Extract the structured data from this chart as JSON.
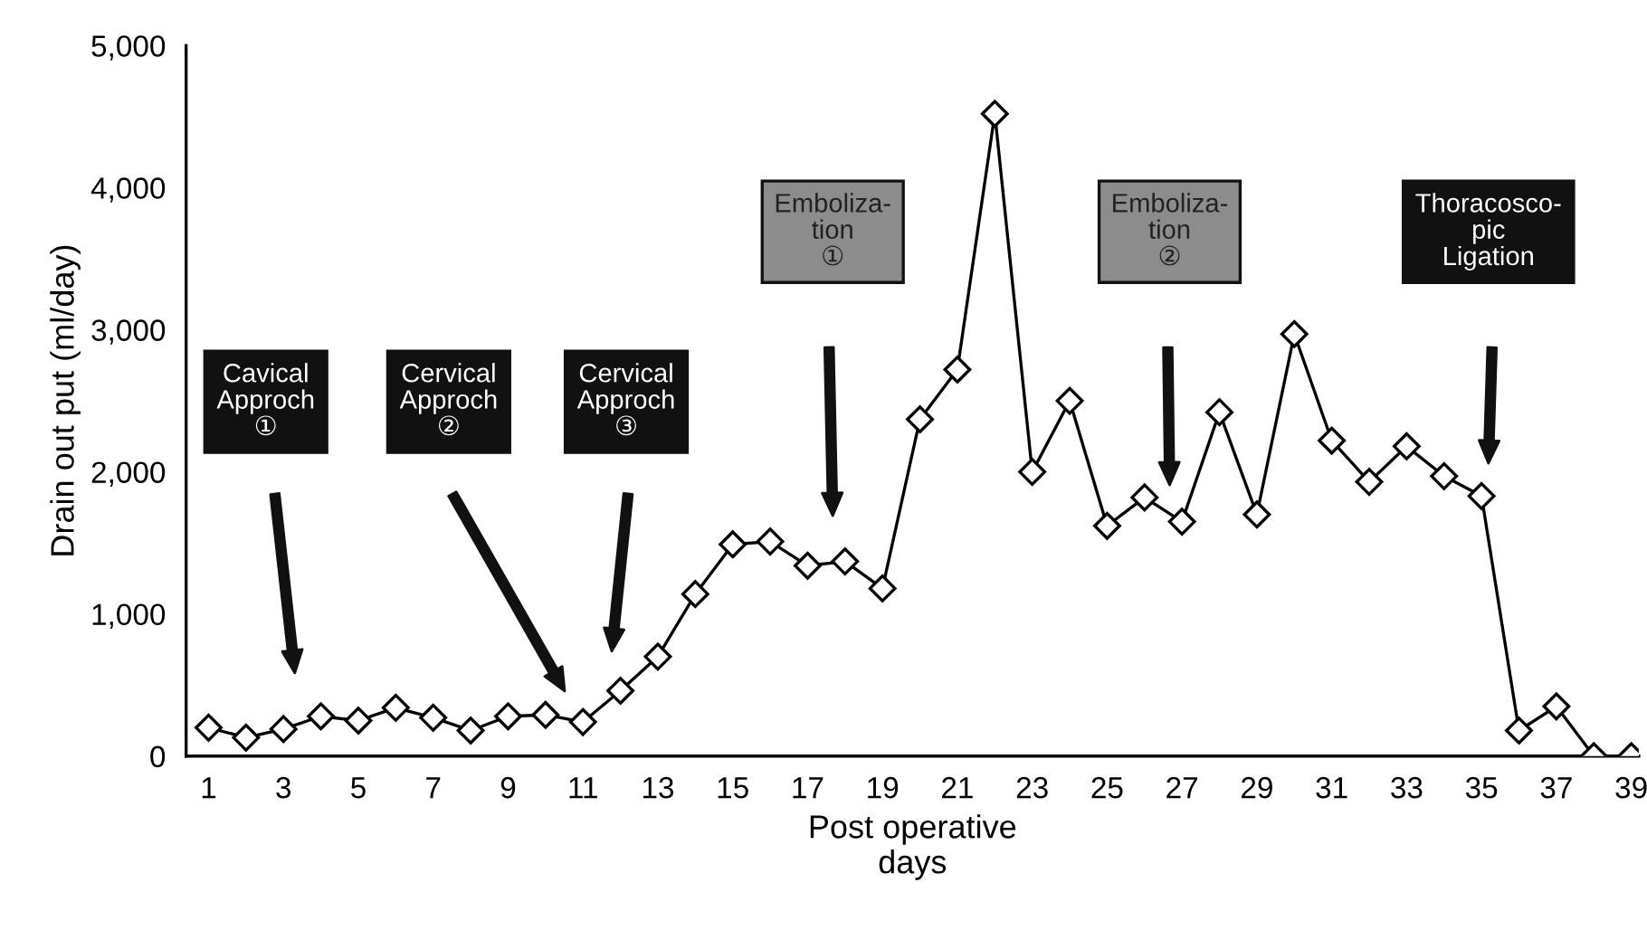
{
  "chart_data": {
    "type": "line",
    "xlabel": "Post operative\ndays",
    "ylabel": "Drain out put (ml/day)",
    "x": [
      1,
      2,
      3,
      4,
      5,
      6,
      7,
      8,
      9,
      10,
      11,
      12,
      13,
      14,
      15,
      16,
      17,
      18,
      19,
      20,
      21,
      22,
      23,
      24,
      25,
      26,
      27,
      28,
      29,
      30,
      31,
      32,
      33,
      34,
      35,
      36,
      37,
      38,
      39
    ],
    "series": [
      {
        "color": "#000000",
        "values": [
          200,
          130,
          190,
          280,
          250,
          340,
          270,
          180,
          280,
          290,
          240,
          460,
          700,
          1140,
          1490,
          1510,
          1340,
          1370,
          1180,
          2370,
          2720,
          4520,
          2000,
          2500,
          1620,
          1820,
          1650,
          2420,
          1700,
          2970,
          2220,
          1930,
          2180,
          1970,
          1830,
          180,
          350,
          0,
          0
        ]
      }
    ],
    "marker": "diamond",
    "line_style": "solid",
    "grid": false,
    "xlim": [
      0.4,
      39.2
    ],
    "xticks": [
      1,
      3,
      5,
      7,
      9,
      11,
      13,
      15,
      17,
      19,
      21,
      23,
      25,
      27,
      29,
      31,
      33,
      35,
      37,
      39
    ],
    "ylim": [
      0,
      5000
    ],
    "yticks": [
      0,
      {
        "value": 1000,
        "label": "1,000"
      },
      {
        "value": 2000,
        "label": "2,000"
      },
      {
        "value": 3000,
        "label": "3,000"
      },
      {
        "value": 4000,
        "label": "4,000"
      },
      {
        "value": 5000,
        "label": "5,000"
      }
    ],
    "annotations": [
      "Cavical\nApproch\n①",
      "Cervical\nApproch\n②",
      "Cervical\nApproch\n③",
      "Emboliza-\ntion\n①",
      "Emboliza-\ntion\n②",
      "Thoracosco-\npic\nLigation"
    ]
  }
}
